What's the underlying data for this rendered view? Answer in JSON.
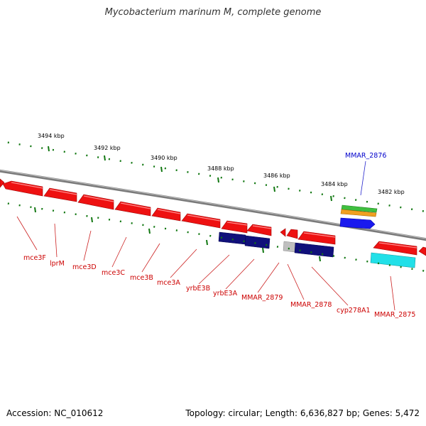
{
  "title": "Mycobacterium marinum M, complete genome",
  "footer": {
    "accession": "Accession: NC_010612",
    "topology": "Topology: circular; Length: 6,636,827 bp; Genes: 5,472"
  },
  "scale_labels": [
    "3494 kbp",
    "3492 kbp",
    "3490 kbp",
    "3488 kbp",
    "3486 kbp",
    "3484 kbp",
    "3482 kbp"
  ],
  "colors": {
    "backbone": "#7a7a7a",
    "gene": "#ee1111",
    "gene_label": "#cc0000",
    "blue_label": "#0000cc",
    "tick": "#117711",
    "navy": "#10107a",
    "cyan": "#22e0e8"
  },
  "gene_labels": [
    "mce3F",
    "lprM",
    "mce3D",
    "mce3C",
    "mce3B",
    "mce3A",
    "yrbE3B",
    "yrbE3A",
    "MMAR_2879",
    "MMAR_2878",
    "cyp278A1",
    "MMAR_2875"
  ],
  "top_gene_label": "MMAR_2876"
}
